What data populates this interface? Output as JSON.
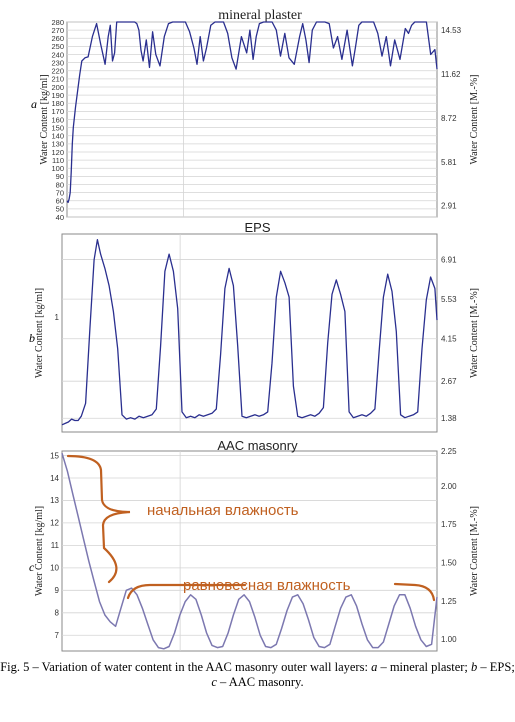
{
  "chart_data": [
    {
      "type": "line",
      "panel_label": "a",
      "title": "mineral plaster",
      "ylabel": "Water Content [kg/ml]",
      "ylabel_right": "Water Content [M.-%]",
      "ylim": [
        40,
        280
      ],
      "yticks": [
        40,
        50,
        60,
        70,
        80,
        90,
        100,
        110,
        120,
        130,
        140,
        150,
        160,
        170,
        180,
        190,
        200,
        210,
        220,
        230,
        240,
        250,
        260,
        270,
        280
      ],
      "yticks_right": [
        {
          "value": 54,
          "label": "2.91"
        },
        {
          "value": 108,
          "label": "5.81"
        },
        {
          "value": 162,
          "label": "8.72"
        },
        {
          "value": 216,
          "label": "11.62"
        },
        {
          "value": 270,
          "label": "14.53"
        }
      ],
      "color": "#2a2f8f",
      "x": [
        0,
        0.1,
        0.2,
        0.3,
        0.4,
        0.5,
        0.6,
        0.8,
        1.0,
        1.2,
        1.4,
        1.7,
        2.0,
        2.4,
        2.8,
        3.2,
        3.6,
        3.9,
        4.1,
        4.3,
        4.5,
        4.7,
        5.0,
        5.4,
        5.8,
        6.0,
        6.2,
        6.4,
        6.6,
        6.8,
        7.0,
        7.2,
        7.5,
        7.8,
        8.1,
        8.4,
        8.8,
        9.2,
        9.6,
        10.0,
        10.4,
        10.8,
        11.2,
        11.6,
        12.0,
        12.3,
        12.6,
        12.9,
        13.2,
        13.6,
        14.0,
        14.4,
        14.8,
        15.2,
        15.6,
        16.0,
        16.5,
        17.0,
        17.3,
        17.6,
        17.9,
        18.2,
        18.6,
        19.0,
        19.4,
        19.8,
        20.2,
        20.6,
        21.0,
        21.5,
        22.0,
        22.3,
        22.6,
        22.9,
        23.2,
        23.6,
        24.0,
        24.4,
        24.8,
        25.2,
        25.6,
        26.0,
        26.5,
        27.0,
        27.3,
        27.6,
        27.9,
        28.2,
        28.6,
        29.0,
        29.4,
        29.8,
        30.2,
        30.6,
        31.0,
        31.5,
        32.0,
        32.3,
        32.6,
        32.9,
        33.2,
        33.6,
        34.0,
        34.4,
        34.8,
        35.0
      ],
      "values": [
        60,
        58,
        62,
        70,
        95,
        130,
        150,
        175,
        195,
        215,
        232,
        236,
        237,
        262,
        278,
        252,
        228,
        262,
        276,
        232,
        242,
        280,
        280,
        282,
        280,
        280,
        280,
        281,
        278,
        270,
        245,
        232,
        258,
        224,
        268,
        240,
        226,
        262,
        278,
        280,
        280,
        280,
        280,
        268,
        248,
        228,
        262,
        232,
        248,
        276,
        280,
        280,
        280,
        266,
        236,
        222,
        262,
        242,
        270,
        234,
        262,
        278,
        280,
        280,
        280,
        270,
        238,
        266,
        236,
        228,
        262,
        278,
        258,
        230,
        270,
        280,
        280,
        281,
        278,
        248,
        262,
        234,
        270,
        226,
        250,
        276,
        280,
        280,
        280,
        280,
        266,
        238,
        262,
        226,
        258,
        234,
        272,
        266,
        276,
        280,
        280,
        280,
        280,
        240,
        246,
        222
      ]
    },
    {
      "type": "line",
      "panel_label": "b",
      "title": "EPS",
      "ylabel": "Water Content [kg/ml]",
      "ylabel_right": "Water Content [M.-%]",
      "ylim": [
        0.9,
        7.8
      ],
      "yticks_left": [
        {
          "value": 4.9,
          "label": "1"
        }
      ],
      "yticks_right": [
        {
          "value": 1.38,
          "label": "1.38"
        },
        {
          "value": 2.67,
          "label": "2.67"
        },
        {
          "value": 4.15,
          "label": "4.15"
        },
        {
          "value": 5.53,
          "label": "5.53"
        },
        {
          "value": 6.91,
          "label": "6.91"
        }
      ],
      "color": "#2a2f8f",
      "x": [
        0,
        0.3,
        0.6,
        0.9,
        1.2,
        1.5,
        1.8,
        2.2,
        2.6,
        3.0,
        3.3,
        3.6,
        4.0,
        4.4,
        4.8,
        5.2,
        5.6,
        6.0,
        6.4,
        6.8,
        7.2,
        7.6,
        8.0,
        8.4,
        8.8,
        9.2,
        9.6,
        10.0,
        10.4,
        10.8,
        11.2,
        11.6,
        12.0,
        12.4,
        12.8,
        13.2,
        13.6,
        14.0,
        14.4,
        14.8,
        15.2,
        15.6,
        16.0,
        16.4,
        16.8,
        17.2,
        17.6,
        18.0,
        18.4,
        18.8,
        19.2,
        19.6,
        20.0,
        20.4,
        20.8,
        21.2,
        21.6,
        22.0,
        22.4,
        22.8,
        23.2,
        23.6,
        24.0,
        24.4,
        24.8,
        25.2,
        25.6,
        26.0,
        26.4,
        26.8,
        27.2,
        27.6,
        28.0,
        28.4,
        28.8,
        29.2,
        29.6,
        30.0,
        30.4,
        30.8,
        31.2,
        31.6,
        32.0,
        32.4,
        32.8,
        33.2,
        33.6,
        34.0,
        34.4,
        34.8,
        35.0
      ],
      "values": [
        1.15,
        1.2,
        1.25,
        1.35,
        1.3,
        1.3,
        1.45,
        1.9,
        4.5,
        6.9,
        7.6,
        7.1,
        6.6,
        6.0,
        5.1,
        3.8,
        1.5,
        1.35,
        1.4,
        1.35,
        1.45,
        1.4,
        1.45,
        1.5,
        1.7,
        3.9,
        6.5,
        7.1,
        6.5,
        5.2,
        1.6,
        1.4,
        1.45,
        1.4,
        1.5,
        1.45,
        1.5,
        1.55,
        1.7,
        3.6,
        5.9,
        6.6,
        6.0,
        3.9,
        1.45,
        1.4,
        1.45,
        1.5,
        1.45,
        1.5,
        1.6,
        3.3,
        5.6,
        6.5,
        6.1,
        5.6,
        2.5,
        1.45,
        1.4,
        1.45,
        1.5,
        1.45,
        1.55,
        1.75,
        4.0,
        5.7,
        6.2,
        5.7,
        5.1,
        1.6,
        1.4,
        1.45,
        1.5,
        1.45,
        1.55,
        1.7,
        3.7,
        5.6,
        6.4,
        5.8,
        4.4,
        1.5,
        1.4,
        1.45,
        1.5,
        1.6,
        3.8,
        5.5,
        6.3,
        5.9,
        4.8
      ]
    },
    {
      "type": "line",
      "panel_label": "c",
      "title": "AAC masonry",
      "ylabel": "Water Content [kg/ml]",
      "ylabel_right": "Water Content [M.-%]",
      "ylim": [
        6.3,
        15.2
      ],
      "yticks": [
        7,
        8,
        9,
        10,
        11,
        12,
        13,
        14,
        15
      ],
      "yticks_right": [
        {
          "value": 6.83,
          "label": "1.00"
        },
        {
          "value": 8.53,
          "label": "1.25"
        },
        {
          "value": 10.24,
          "label": "1.50"
        },
        {
          "value": 11.95,
          "label": "1.75"
        },
        {
          "value": 13.65,
          "label": "2.00"
        },
        {
          "value": 15.3,
          "label": "2.25"
        }
      ],
      "color": "#7c78b0",
      "x": [
        0,
        1,
        2,
        3,
        4,
        5,
        6,
        7,
        8,
        9,
        10,
        11,
        12,
        13,
        14,
        15,
        16,
        17,
        18,
        19,
        20,
        21,
        22,
        23,
        24,
        25,
        26,
        27,
        28,
        29,
        30,
        31,
        32,
        33,
        34,
        35,
        36,
        37,
        38,
        39,
        40,
        41,
        42,
        43,
        44,
        45,
        46,
        47,
        48,
        49,
        50,
        51,
        52,
        53,
        54,
        55,
        56,
        57,
        58,
        59,
        60,
        61,
        62,
        63,
        64,
        65,
        66,
        67,
        68,
        69,
        70
      ],
      "values": [
        15.1,
        14.3,
        13.3,
        12.3,
        11.3,
        10.3,
        9.4,
        8.5,
        7.9,
        7.6,
        7.4,
        8.2,
        9.0,
        9.1,
        8.8,
        8.2,
        7.5,
        6.8,
        6.45,
        6.4,
        6.5,
        7.1,
        7.9,
        8.5,
        8.8,
        8.6,
        7.9,
        7.1,
        6.55,
        6.45,
        6.5,
        7.1,
        7.9,
        8.6,
        8.8,
        8.5,
        7.8,
        7.0,
        6.5,
        6.45,
        6.6,
        7.3,
        8.1,
        8.7,
        8.8,
        8.4,
        7.7,
        6.9,
        6.5,
        6.45,
        6.6,
        7.4,
        8.2,
        8.7,
        8.8,
        8.3,
        7.5,
        6.8,
        6.45,
        6.45,
        6.7,
        7.5,
        8.3,
        8.8,
        8.8,
        8.2,
        7.4,
        6.8,
        6.5,
        6.6,
        8.7
      ]
    }
  ],
  "annotations": {
    "initial": "начальная влажность",
    "equilibrium": "равновесная влажность",
    "color": "#c06020"
  },
  "caption": {
    "prefix": "Fig. 5 – Variation of water content in the AAC masonry outer wall layers: ",
    "a": "a",
    "a_text": " – mineral plaster; ",
    "b": "b",
    "b_text": " – EPS; ",
    "c": "c",
    "c_text": " – AAC masonry."
  }
}
